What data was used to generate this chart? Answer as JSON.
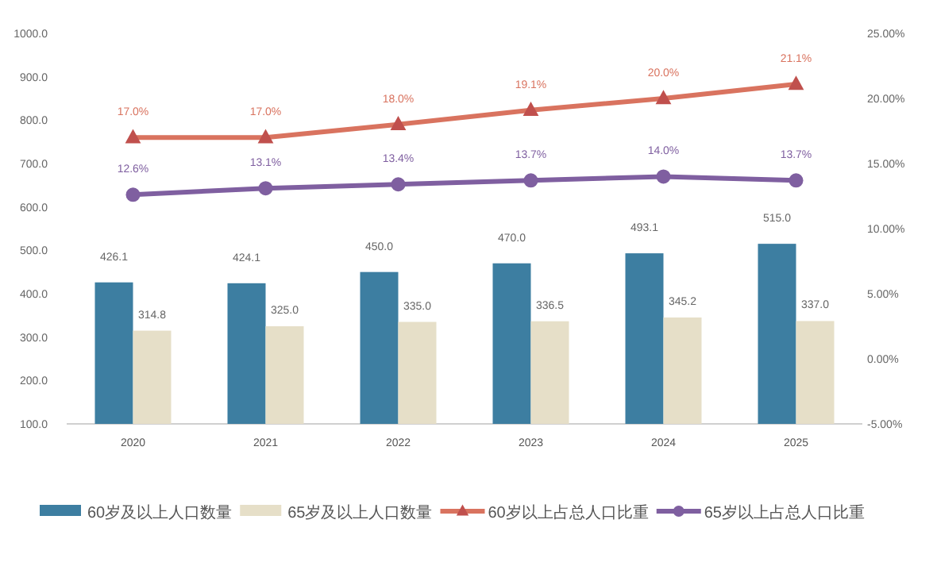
{
  "chart_data": {
    "type": "bar",
    "categories": [
      "2020",
      "2021",
      "2022",
      "2023",
      "2024",
      "2025"
    ],
    "series": [
      {
        "name": "60岁及以上人口数量",
        "color": "#3d7ea1",
        "values": [
          426.1,
          424.1,
          450.0,
          470.0,
          493.1,
          515.0
        ],
        "value_labels": [
          "426.1",
          "424.1",
          "450.0",
          "470.0",
          "493.1",
          "515.0"
        ]
      },
      {
        "name": "65岁及以上人口数量",
        "color": "#e6dfc8",
        "values": [
          314.8,
          325.0,
          335.0,
          336.5,
          345.2,
          337.0
        ],
        "value_labels": [
          "314.8",
          "325.0",
          "335.0",
          "336.5",
          "345.2",
          "337.0"
        ]
      },
      {
        "name": "60岁以上占总人口比重",
        "type": "line",
        "axis": "y2",
        "color": "#d9735f",
        "marker": "triangle",
        "values": [
          17.0,
          17.0,
          18.0,
          19.1,
          20.0,
          21.1
        ],
        "value_labels": [
          "17.0%",
          "17.0%",
          "18.0%",
          "19.1%",
          "20.0%",
          "21.1%"
        ]
      },
      {
        "name": "65岁以上占总人口比重",
        "type": "line",
        "axis": "y2",
        "color": "#7f5fa0",
        "marker": "circle",
        "values": [
          12.6,
          13.1,
          13.4,
          13.7,
          14.0,
          13.7
        ],
        "value_labels": [
          "12.6%",
          "13.1%",
          "13.4%",
          "13.7%",
          "14.0%",
          "13.7%"
        ]
      }
    ],
    "ylim": [
      100,
      1000
    ],
    "yticks": [
      {
        "value": 100,
        "label": "100.0"
      },
      {
        "value": 200,
        "label": "200.0"
      },
      {
        "value": 300,
        "label": "300.0"
      },
      {
        "value": 400,
        "label": "400.0"
      },
      {
        "value": 500,
        "label": "500.0"
      },
      {
        "value": 600,
        "label": "600.0"
      },
      {
        "value": 700,
        "label": "700.0"
      },
      {
        "value": 800,
        "label": "800.0"
      },
      {
        "value": 900,
        "label": "900.0"
      },
      {
        "value": 1000,
        "label": "1000.0"
      }
    ],
    "y2lim": [
      -5,
      25
    ],
    "y2ticks": [
      {
        "value": -5,
        "label": "-5.00%"
      },
      {
        "value": 0,
        "label": "0.00%"
      },
      {
        "value": 5,
        "label": "5.00%"
      },
      {
        "value": 10,
        "label": "10.00%"
      },
      {
        "value": 15,
        "label": "15.00%"
      },
      {
        "value": 20,
        "label": "20.00%"
      },
      {
        "value": 25,
        "label": "25.00%"
      }
    ],
    "grid": false,
    "legend": "bottom"
  }
}
